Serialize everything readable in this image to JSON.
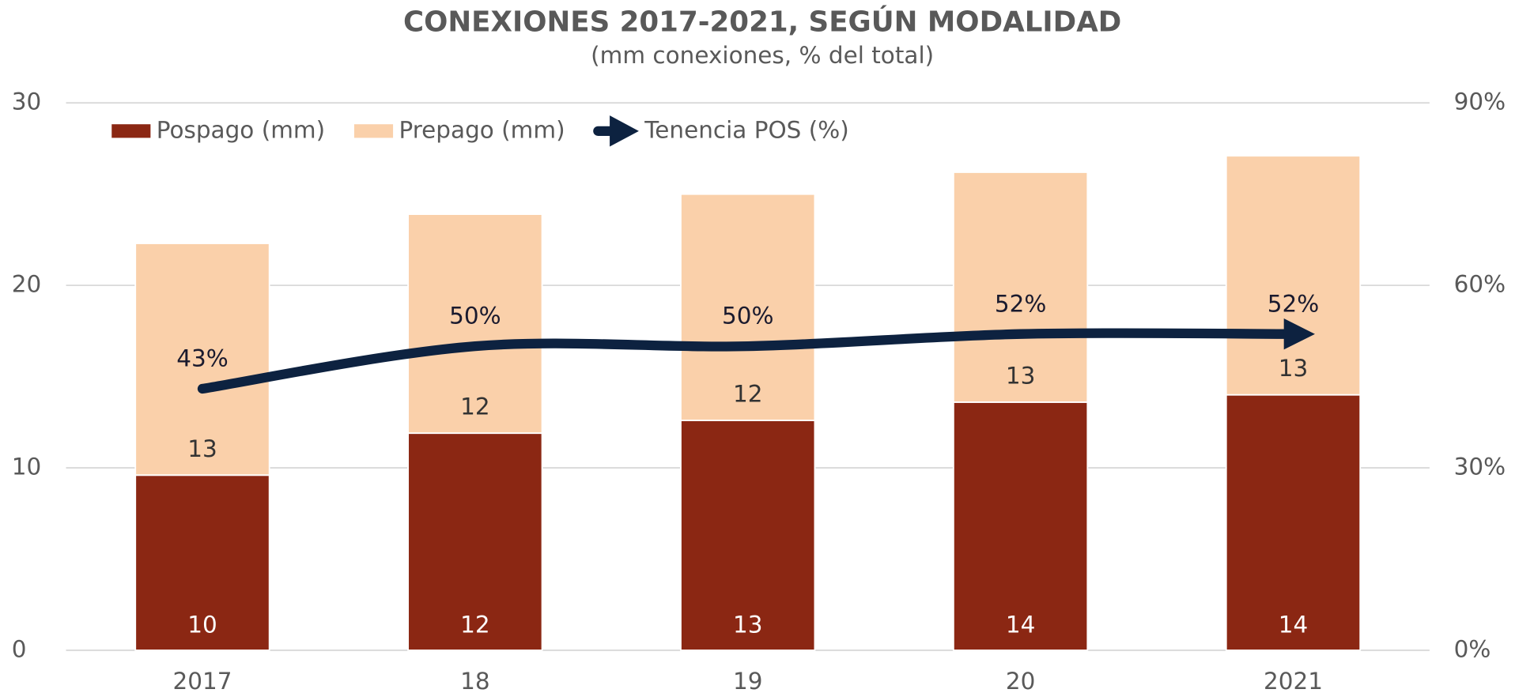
{
  "chart_data": {
    "type": "bar",
    "stacked": true,
    "title": "CONEXIONES 2017-2021, SEGÚN MODALIDAD",
    "subtitle": "(mm conexiones, % del total)",
    "categories": [
      "2017",
      "18",
      "19",
      "20",
      "2021"
    ],
    "series": [
      {
        "name": "Pospago (mm)",
        "color": "#8b2713",
        "values": [
          9.6,
          11.9,
          12.6,
          13.6,
          14.0
        ],
        "value_labels": [
          "10",
          "12",
          "13",
          "14",
          "14"
        ]
      },
      {
        "name": "Prepago (mm)",
        "color": "#fad0aa",
        "values": [
          12.7,
          12.0,
          12.4,
          12.6,
          13.1
        ],
        "value_labels": [
          "13",
          "12",
          "12",
          "13",
          "13"
        ]
      },
      {
        "name": "Tenencia POS (%)",
        "type": "line",
        "axis": "y2",
        "color": "#0d2240",
        "values": [
          43,
          50,
          50,
          52,
          52
        ],
        "value_labels": [
          "43%",
          "50%",
          "50%",
          "52%",
          "52%"
        ]
      }
    ],
    "ylim": [
      0,
      30
    ],
    "yticks": [
      0,
      10,
      20,
      30
    ],
    "y2lim": [
      0,
      90
    ],
    "y2ticks": [
      {
        "value": 0,
        "label": "0%"
      },
      {
        "value": 30,
        "label": "30%"
      },
      {
        "value": 60,
        "label": "60%"
      },
      {
        "value": 90,
        "label": "90%"
      }
    ],
    "grid": true,
    "legend": "top-left"
  }
}
